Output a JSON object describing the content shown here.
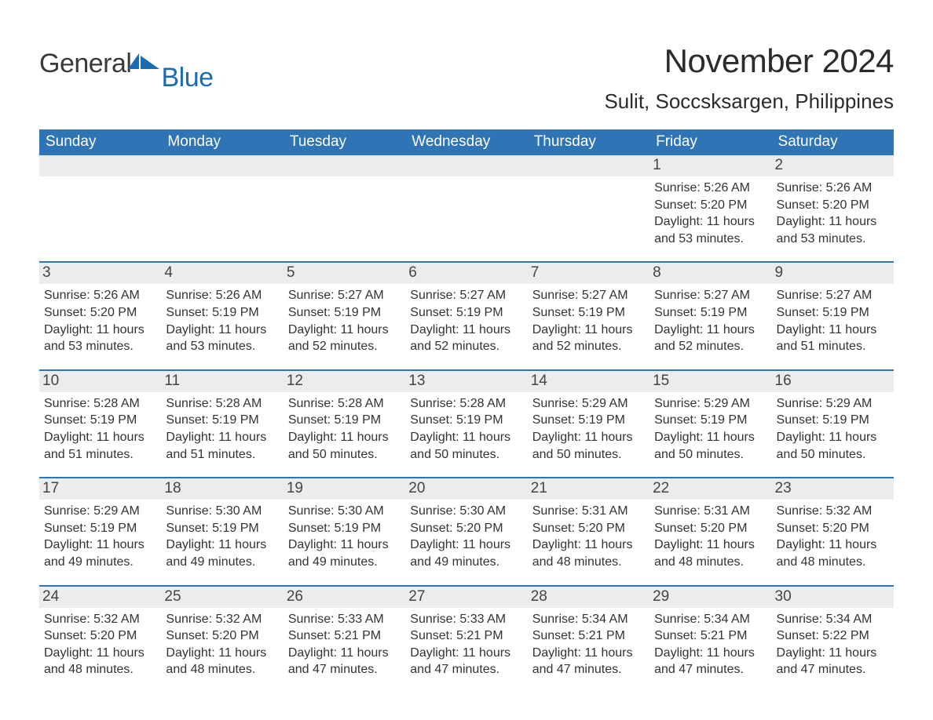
{
  "brand": {
    "word1": "General",
    "word2": "Blue",
    "icon_color": "#1b6ab2"
  },
  "title": "November 2024",
  "subtitle": "Sulit, Soccsksargen, Philippines",
  "colors": {
    "header_bg": "#2f74b5",
    "header_text": "#ffffff",
    "row_separator": "#2f74b5",
    "daynum_bg": "#ececec",
    "body_text": "#333333",
    "brand_blue": "#1b6ab2"
  },
  "day_headers": [
    "Sunday",
    "Monday",
    "Tuesday",
    "Wednesday",
    "Thursday",
    "Friday",
    "Saturday"
  ],
  "weeks": [
    [
      {
        "day": "",
        "sunrise": "",
        "sunset": "",
        "daylight": ""
      },
      {
        "day": "",
        "sunrise": "",
        "sunset": "",
        "daylight": ""
      },
      {
        "day": "",
        "sunrise": "",
        "sunset": "",
        "daylight": ""
      },
      {
        "day": "",
        "sunrise": "",
        "sunset": "",
        "daylight": ""
      },
      {
        "day": "",
        "sunrise": "",
        "sunset": "",
        "daylight": ""
      },
      {
        "day": "1",
        "sunrise": "5:26 AM",
        "sunset": "5:20 PM",
        "daylight": "11 hours and 53 minutes."
      },
      {
        "day": "2",
        "sunrise": "5:26 AM",
        "sunset": "5:20 PM",
        "daylight": "11 hours and 53 minutes."
      }
    ],
    [
      {
        "day": "3",
        "sunrise": "5:26 AM",
        "sunset": "5:20 PM",
        "daylight": "11 hours and 53 minutes."
      },
      {
        "day": "4",
        "sunrise": "5:26 AM",
        "sunset": "5:19 PM",
        "daylight": "11 hours and 53 minutes."
      },
      {
        "day": "5",
        "sunrise": "5:27 AM",
        "sunset": "5:19 PM",
        "daylight": "11 hours and 52 minutes."
      },
      {
        "day": "6",
        "sunrise": "5:27 AM",
        "sunset": "5:19 PM",
        "daylight": "11 hours and 52 minutes."
      },
      {
        "day": "7",
        "sunrise": "5:27 AM",
        "sunset": "5:19 PM",
        "daylight": "11 hours and 52 minutes."
      },
      {
        "day": "8",
        "sunrise": "5:27 AM",
        "sunset": "5:19 PM",
        "daylight": "11 hours and 52 minutes."
      },
      {
        "day": "9",
        "sunrise": "5:27 AM",
        "sunset": "5:19 PM",
        "daylight": "11 hours and 51 minutes."
      }
    ],
    [
      {
        "day": "10",
        "sunrise": "5:28 AM",
        "sunset": "5:19 PM",
        "daylight": "11 hours and 51 minutes."
      },
      {
        "day": "11",
        "sunrise": "5:28 AM",
        "sunset": "5:19 PM",
        "daylight": "11 hours and 51 minutes."
      },
      {
        "day": "12",
        "sunrise": "5:28 AM",
        "sunset": "5:19 PM",
        "daylight": "11 hours and 50 minutes."
      },
      {
        "day": "13",
        "sunrise": "5:28 AM",
        "sunset": "5:19 PM",
        "daylight": "11 hours and 50 minutes."
      },
      {
        "day": "14",
        "sunrise": "5:29 AM",
        "sunset": "5:19 PM",
        "daylight": "11 hours and 50 minutes."
      },
      {
        "day": "15",
        "sunrise": "5:29 AM",
        "sunset": "5:19 PM",
        "daylight": "11 hours and 50 minutes."
      },
      {
        "day": "16",
        "sunrise": "5:29 AM",
        "sunset": "5:19 PM",
        "daylight": "11 hours and 50 minutes."
      }
    ],
    [
      {
        "day": "17",
        "sunrise": "5:29 AM",
        "sunset": "5:19 PM",
        "daylight": "11 hours and 49 minutes."
      },
      {
        "day": "18",
        "sunrise": "5:30 AM",
        "sunset": "5:19 PM",
        "daylight": "11 hours and 49 minutes."
      },
      {
        "day": "19",
        "sunrise": "5:30 AM",
        "sunset": "5:19 PM",
        "daylight": "11 hours and 49 minutes."
      },
      {
        "day": "20",
        "sunrise": "5:30 AM",
        "sunset": "5:20 PM",
        "daylight": "11 hours and 49 minutes."
      },
      {
        "day": "21",
        "sunrise": "5:31 AM",
        "sunset": "5:20 PM",
        "daylight": "11 hours and 48 minutes."
      },
      {
        "day": "22",
        "sunrise": "5:31 AM",
        "sunset": "5:20 PM",
        "daylight": "11 hours and 48 minutes."
      },
      {
        "day": "23",
        "sunrise": "5:32 AM",
        "sunset": "5:20 PM",
        "daylight": "11 hours and 48 minutes."
      }
    ],
    [
      {
        "day": "24",
        "sunrise": "5:32 AM",
        "sunset": "5:20 PM",
        "daylight": "11 hours and 48 minutes."
      },
      {
        "day": "25",
        "sunrise": "5:32 AM",
        "sunset": "5:20 PM",
        "daylight": "11 hours and 48 minutes."
      },
      {
        "day": "26",
        "sunrise": "5:33 AM",
        "sunset": "5:21 PM",
        "daylight": "11 hours and 47 minutes."
      },
      {
        "day": "27",
        "sunrise": "5:33 AM",
        "sunset": "5:21 PM",
        "daylight": "11 hours and 47 minutes."
      },
      {
        "day": "28",
        "sunrise": "5:34 AM",
        "sunset": "5:21 PM",
        "daylight": "11 hours and 47 minutes."
      },
      {
        "day": "29",
        "sunrise": "5:34 AM",
        "sunset": "5:21 PM",
        "daylight": "11 hours and 47 minutes."
      },
      {
        "day": "30",
        "sunrise": "5:34 AM",
        "sunset": "5:22 PM",
        "daylight": "11 hours and 47 minutes."
      }
    ]
  ],
  "labels": {
    "sunrise": "Sunrise: ",
    "sunset": "Sunset: ",
    "daylight": "Daylight: "
  }
}
